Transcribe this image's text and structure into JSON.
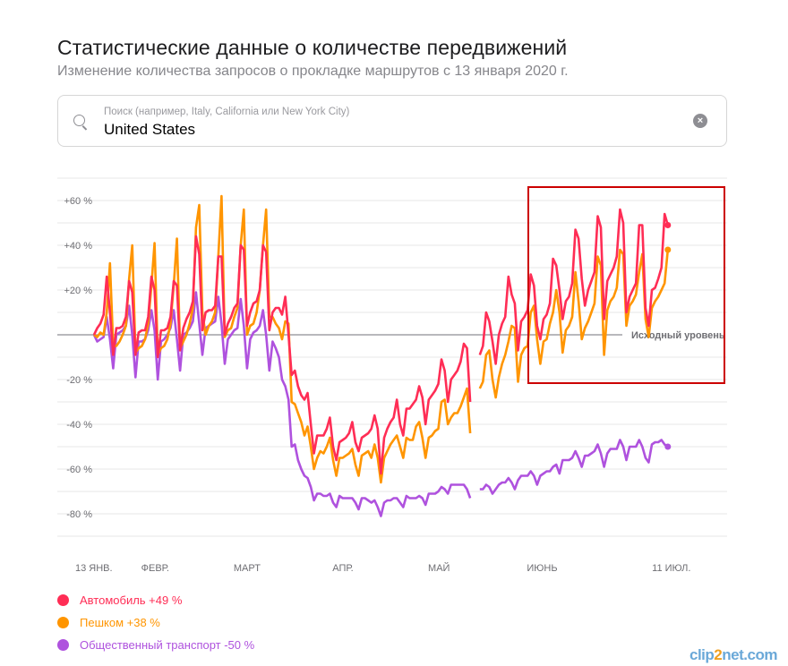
{
  "header": {
    "title": "Статистические данные о количестве передвижений",
    "subtitle": "Изменение количества запросов о прокладке маршрутов с 13 января 2020 г."
  },
  "search": {
    "placeholder": "Поиск (например, Italy, California или New York City)",
    "value": "United States",
    "search_icon": "magnifier-icon",
    "clear_icon": "clear-circle-icon",
    "clear_glyph": "×"
  },
  "watermark": {
    "text": "clip2net.com"
  },
  "chart_data": {
    "type": "line",
    "title": "",
    "xlabel": "",
    "ylabel": "",
    "x_start": "2020-01-13",
    "x_end": "2020-07-11",
    "x_step": "1 day",
    "ylim": [
      -90,
      70
    ],
    "grid": true,
    "y_ticks": [
      {
        "value": 60,
        "label": "+60 %"
      },
      {
        "value": 40,
        "label": "+40 %"
      },
      {
        "value": 20,
        "label": "+20 %"
      },
      {
        "value": -20,
        "label": "-20 %"
      },
      {
        "value": -40,
        "label": "-40 %"
      },
      {
        "value": -60,
        "label": "-60 %"
      },
      {
        "value": -80,
        "label": "-80 %"
      }
    ],
    "x_ticks": [
      {
        "date": "2020-01-13",
        "label": "13 ЯНВ."
      },
      {
        "date": "2020-02-01",
        "label": "ФЕВР."
      },
      {
        "date": "2020-03-01",
        "label": "МАРТ"
      },
      {
        "date": "2020-04-01",
        "label": "АПР."
      },
      {
        "date": "2020-05-01",
        "label": "МАЙ"
      },
      {
        "date": "2020-06-01",
        "label": "ИЮНЬ"
      },
      {
        "date": "2020-07-11",
        "label": "11 ИЮЛ."
      }
    ],
    "baseline": {
      "value": 0,
      "label": "Исходный уровень"
    },
    "legend_position": "bottom-left",
    "highlight_box": {
      "color": "#cc0000"
    },
    "series": [
      {
        "name": "Автомобиль",
        "legend": "Автомобиль +49 %",
        "color": "#ff2d55",
        "values": [
          0,
          3,
          5,
          9,
          26,
          10,
          -9,
          3,
          3,
          4,
          8,
          24,
          19,
          -9,
          1,
          2,
          2,
          8,
          26,
          20,
          -10,
          2,
          2,
          3,
          8,
          24,
          22,
          -7,
          3,
          7,
          10,
          15,
          44,
          36,
          2,
          10,
          11,
          11,
          13,
          35,
          35,
          0,
          5,
          8,
          12,
          14,
          40,
          38,
          4,
          10,
          14,
          15,
          20,
          40,
          37,
          2,
          10,
          12,
          12,
          9,
          17,
          0,
          -18,
          -16,
          -23,
          -27,
          -29,
          -26,
          -40,
          -53,
          -45,
          -45,
          -45,
          -42,
          -37,
          -50,
          -56,
          -48,
          -47,
          -46,
          -44,
          -39,
          -48,
          -52,
          -46,
          -45,
          -44,
          -42,
          -36,
          -42,
          -62,
          -46,
          -42,
          -39,
          -37,
          -29,
          -40,
          -45,
          -33,
          -33,
          -31,
          -29,
          -23,
          -28,
          -40,
          -29,
          -27,
          -25,
          -22,
          -11,
          -16,
          -30,
          -20,
          -18,
          -16,
          -12,
          -4,
          -6,
          -30,
          null,
          null,
          -9,
          -5,
          10,
          6,
          -3,
          -13,
          0,
          5,
          8,
          26,
          18,
          14,
          -7,
          6,
          8,
          11,
          27,
          22,
          4,
          -2,
          7,
          9,
          14,
          34,
          31,
          20,
          7,
          15,
          17,
          23,
          47,
          43,
          25,
          13,
          20,
          24,
          28,
          53,
          48,
          7,
          24,
          27,
          30,
          35,
          56,
          50,
          10,
          17,
          20,
          23,
          49,
          49,
          12,
          4,
          20,
          21,
          25,
          30,
          54,
          49
        ]
      },
      {
        "name": "Пешком",
        "legend": "Пешком +38 %",
        "color": "#ff9500",
        "values": [
          0,
          -1,
          1,
          0,
          10,
          32,
          -5,
          -5,
          -3,
          0,
          4,
          25,
          40,
          -8,
          -6,
          -5,
          -2,
          5,
          22,
          41,
          -9,
          -6,
          -5,
          -2,
          5,
          22,
          43,
          -6,
          -3,
          0,
          5,
          12,
          48,
          58,
          10,
          0,
          4,
          6,
          10,
          35,
          62,
          -1,
          2,
          3,
          8,
          12,
          40,
          56,
          0,
          4,
          5,
          10,
          20,
          40,
          56,
          8,
          8,
          5,
          3,
          -2,
          6,
          5,
          -30,
          -31,
          -35,
          -39,
          -45,
          -41,
          -50,
          -60,
          -55,
          -52,
          -53,
          -50,
          -46,
          -56,
          -63,
          -55,
          -55,
          -54,
          -53,
          -51,
          -58,
          -63,
          -54,
          -53,
          -52,
          -55,
          -49,
          -55,
          -66,
          -55,
          -52,
          -49,
          -47,
          -45,
          -50,
          -55,
          -46,
          -47,
          -47,
          -41,
          -39,
          -46,
          -55,
          -46,
          -45,
          -43,
          -42,
          -30,
          -29,
          -40,
          -37,
          -35,
          -35,
          -32,
          -28,
          -24,
          -44,
          null,
          null,
          -24,
          -21,
          -9,
          -7,
          -20,
          -28,
          -19,
          -13,
          -9,
          -3,
          4,
          3,
          -21,
          -9,
          -6,
          -5,
          10,
          13,
          -2,
          -13,
          -3,
          -2,
          5,
          10,
          20,
          10,
          -8,
          2,
          4,
          8,
          28,
          15,
          -2,
          3,
          6,
          10,
          14,
          35,
          31,
          -9,
          11,
          15,
          17,
          21,
          38,
          36,
          4,
          13,
          15,
          18,
          28,
          36,
          7,
          -1,
          12,
          15,
          17,
          20,
          23,
          38
        ]
      },
      {
        "name": "Общественный транспорт",
        "legend": "Общественный транспорт -50 %",
        "color": "#af52de",
        "values": [
          0,
          -3,
          -2,
          -1,
          8,
          -2,
          -15,
          0,
          1,
          2,
          4,
          13,
          0,
          -19,
          -3,
          -3,
          -2,
          2,
          11,
          2,
          -20,
          -3,
          -2,
          0,
          3,
          11,
          -2,
          -16,
          0,
          1,
          3,
          6,
          19,
          5,
          -9,
          3,
          4,
          5,
          6,
          17,
          5,
          -13,
          -2,
          0,
          2,
          3,
          16,
          4,
          -15,
          -2,
          1,
          2,
          4,
          11,
          0,
          -16,
          -3,
          -6,
          -10,
          -20,
          -23,
          -29,
          -50,
          -49,
          -56,
          -60,
          -63,
          -64,
          -68,
          -74,
          -71,
          -71,
          -72,
          -72,
          -71,
          -75,
          -77,
          -72,
          -73,
          -73,
          -73,
          -73,
          -75,
          -78,
          -73,
          -73,
          -74,
          -75,
          -74,
          -77,
          -81,
          -75,
          -74,
          -74,
          -73,
          -73,
          -75,
          -77,
          -72,
          -73,
          -73,
          -73,
          -72,
          -73,
          -76,
          -71,
          -71,
          -71,
          -70,
          -68,
          -69,
          -71,
          -67,
          -67,
          -67,
          -67,
          -67,
          -69,
          -73,
          null,
          null,
          -69,
          -69,
          -67,
          -68,
          -71,
          -69,
          -67,
          -66,
          -66,
          -64,
          -66,
          -69,
          -65,
          -63,
          -63,
          -63,
          -61,
          -63,
          -67,
          -63,
          -62,
          -61,
          -61,
          -59,
          -58,
          -62,
          -56,
          -56,
          -56,
          -55,
          -52,
          -55,
          -59,
          -54,
          -54,
          -53,
          -52,
          -49,
          -53,
          -59,
          -53,
          -51,
          -51,
          -51,
          -47,
          -50,
          -56,
          -50,
          -50,
          -50,
          -47,
          -50,
          -55,
          -57,
          -49,
          -48,
          -48,
          -47,
          -49,
          -50
        ]
      }
    ]
  }
}
